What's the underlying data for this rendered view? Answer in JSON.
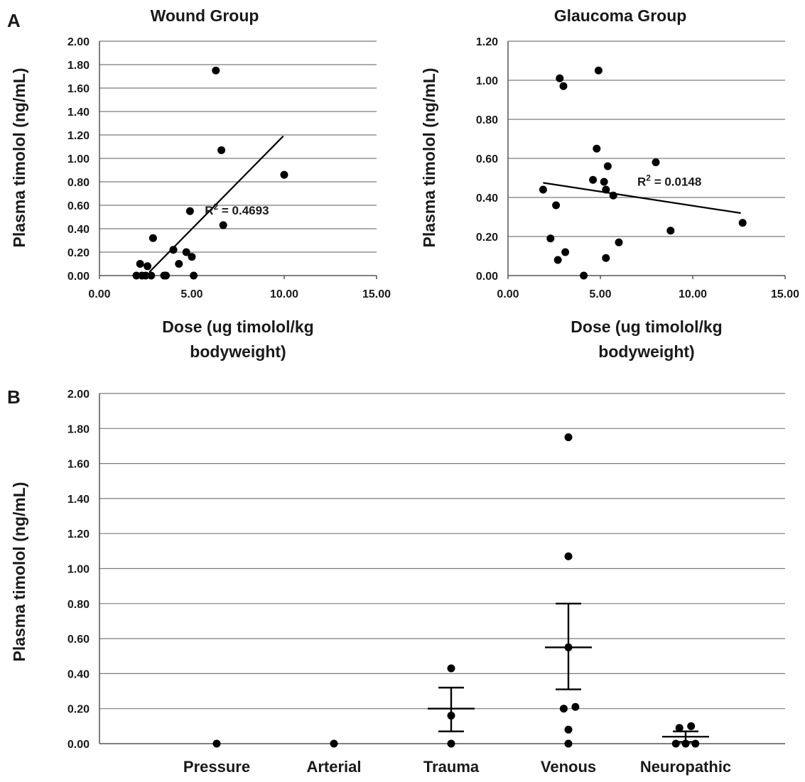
{
  "panel_labels": {
    "a": "A",
    "b": "B"
  },
  "chart_data": [
    {
      "id": "wound",
      "type": "scatter",
      "title": "Wound Group",
      "xlabel_lines": [
        "Dose (ug timolol/kg",
        "bodyweight)"
      ],
      "ylabel": "Plasma timolol (ng/mL)",
      "xlim": [
        0,
        15
      ],
      "ylim": [
        0,
        2
      ],
      "xticks": [
        "0.00",
        "5.00",
        "10.00",
        "15.00"
      ],
      "yticks": [
        "0.00",
        "0.20",
        "0.40",
        "0.60",
        "0.80",
        "1.00",
        "1.20",
        "1.40",
        "1.60",
        "1.80",
        "2.00"
      ],
      "grid": "horizontal",
      "points": [
        {
          "x": 2.0,
          "y": 0.0
        },
        {
          "x": 2.2,
          "y": 0.1
        },
        {
          "x": 2.3,
          "y": 0.0
        },
        {
          "x": 2.5,
          "y": 0.0
        },
        {
          "x": 2.6,
          "y": 0.08
        },
        {
          "x": 2.8,
          "y": 0.0
        },
        {
          "x": 2.9,
          "y": 0.32
        },
        {
          "x": 3.5,
          "y": 0.0
        },
        {
          "x": 3.6,
          "y": 0.0
        },
        {
          "x": 4.0,
          "y": 0.22
        },
        {
          "x": 4.3,
          "y": 0.1
        },
        {
          "x": 4.7,
          "y": 0.2
        },
        {
          "x": 4.9,
          "y": 0.55
        },
        {
          "x": 5.0,
          "y": 0.16
        },
        {
          "x": 5.1,
          "y": 0.0
        },
        {
          "x": 6.3,
          "y": 1.75
        },
        {
          "x": 6.6,
          "y": 1.07
        },
        {
          "x": 6.7,
          "y": 0.43
        },
        {
          "x": 10.0,
          "y": 0.86
        }
      ],
      "trendline": {
        "x": [
          2.7,
          9.95
        ],
        "y": [
          0.03,
          1.19
        ]
      },
      "annotation": {
        "text_main": "R",
        "text_sup": "2",
        "text_rest": " = 0.4693",
        "x": 5.7,
        "y": 0.52
      }
    },
    {
      "id": "glaucoma",
      "type": "scatter",
      "title": "Glaucoma Group",
      "xlabel_lines": [
        "Dose (ug timolol/kg",
        "bodyweight)"
      ],
      "ylabel": "Plasma timolol (ng/mL)",
      "xlim": [
        0,
        15
      ],
      "ylim": [
        0,
        1.2
      ],
      "xticks": [
        "0.00",
        "5.00",
        "10.00",
        "15.00"
      ],
      "yticks": [
        "0.00",
        "0.20",
        "0.40",
        "0.60",
        "0.80",
        "1.00",
        "1.20"
      ],
      "grid": "horizontal",
      "points": [
        {
          "x": 1.9,
          "y": 0.44
        },
        {
          "x": 2.3,
          "y": 0.19
        },
        {
          "x": 2.6,
          "y": 0.36
        },
        {
          "x": 2.7,
          "y": 0.08
        },
        {
          "x": 2.8,
          "y": 1.01
        },
        {
          "x": 3.0,
          "y": 0.97
        },
        {
          "x": 3.1,
          "y": 0.12
        },
        {
          "x": 4.1,
          "y": 0.0
        },
        {
          "x": 4.6,
          "y": 0.49
        },
        {
          "x": 4.8,
          "y": 0.65
        },
        {
          "x": 4.9,
          "y": 1.05
        },
        {
          "x": 5.2,
          "y": 0.48
        },
        {
          "x": 5.3,
          "y": 0.44
        },
        {
          "x": 5.3,
          "y": 0.09
        },
        {
          "x": 5.4,
          "y": 0.56
        },
        {
          "x": 5.7,
          "y": 0.41
        },
        {
          "x": 6.0,
          "y": 0.17
        },
        {
          "x": 8.0,
          "y": 0.58
        },
        {
          "x": 8.8,
          "y": 0.23
        },
        {
          "x": 12.7,
          "y": 0.27
        }
      ],
      "trendline": {
        "x": [
          1.9,
          12.6
        ],
        "y": [
          0.475,
          0.32
        ]
      },
      "annotation": {
        "text_main": "R",
        "text_sup": "2",
        "text_rest": " = 0.0148",
        "x": 7.0,
        "y": 0.46
      }
    },
    {
      "id": "by-type",
      "type": "scatter",
      "title": "",
      "ylabel": "Plasma timolol (ng/mL)",
      "ylim": [
        0,
        2
      ],
      "yticks": [
        "0.00",
        "0.20",
        "0.40",
        "0.60",
        "0.80",
        "1.00",
        "1.20",
        "1.40",
        "1.60",
        "1.80",
        "2.00"
      ],
      "categories": [
        "Pressure",
        "Arterial",
        "Trauma",
        "Venous",
        "Neuropathic"
      ],
      "grid": "horizontal",
      "groups": [
        {
          "category": "Pressure",
          "points": [
            {
              "dx": 0,
              "y": 0.0
            }
          ]
        },
        {
          "category": "Arterial",
          "points": [
            {
              "dx": 0,
              "y": 0.0
            }
          ]
        },
        {
          "category": "Trauma",
          "points": [
            {
              "dx": 0,
              "y": 0.43
            },
            {
              "dx": 0,
              "y": 0.16
            },
            {
              "dx": 0,
              "y": 0.0
            }
          ],
          "mean": 0.2,
          "error": [
            0.07,
            0.32
          ]
        },
        {
          "category": "Venous",
          "points": [
            {
              "dx": 0,
              "y": 1.75
            },
            {
              "dx": 0,
              "y": 1.07
            },
            {
              "dx": 0,
              "y": 0.55
            },
            {
              "dx": -0.12,
              "y": 0.2
            },
            {
              "dx": 0.18,
              "y": 0.21
            },
            {
              "dx": 0,
              "y": 0.08
            },
            {
              "dx": 0,
              "y": 0.0
            }
          ],
          "mean": 0.55,
          "error": [
            0.31,
            0.8
          ]
        },
        {
          "category": "Neuropathic",
          "points": [
            {
              "dx": -0.16,
              "y": 0.09
            },
            {
              "dx": 0.14,
              "y": 0.1
            },
            {
              "dx": -0.25,
              "y": 0.0
            },
            {
              "dx": 0.0,
              "y": 0.0
            },
            {
              "dx": 0.25,
              "y": 0.0
            }
          ],
          "mean": 0.04,
          "error": [
            0.01,
            0.07
          ]
        }
      ]
    }
  ]
}
